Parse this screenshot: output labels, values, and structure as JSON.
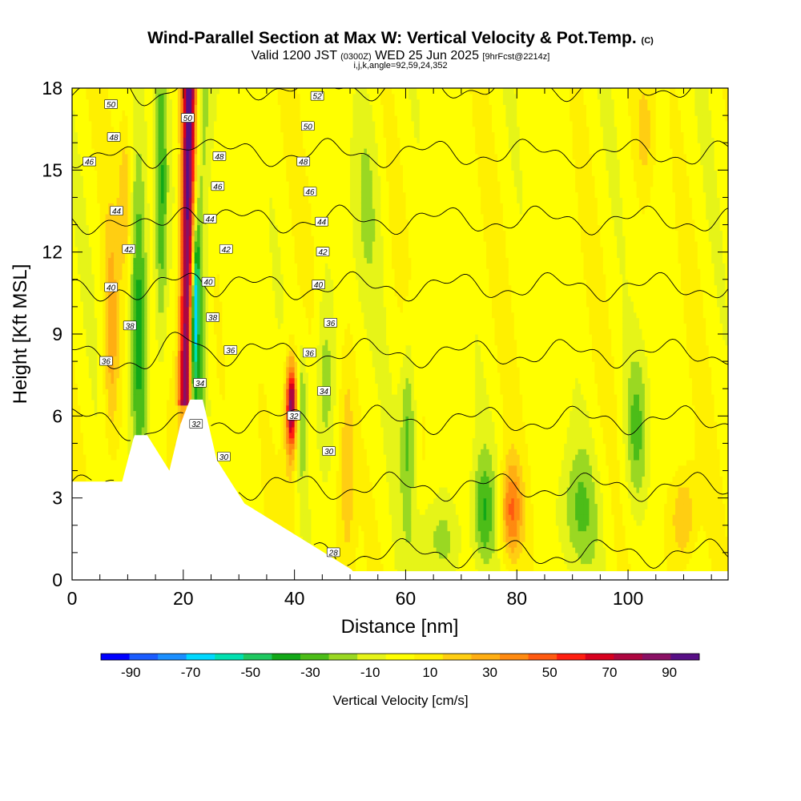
{
  "header": {
    "title_main": "Wind-Parallel Section at Max W: Vertical Velocity & Pot.Temp.",
    "title_mark": "(C)",
    "valid_prefix": "Valid 1200 JST",
    "valid_utc": "(0300Z)",
    "valid_date": "WED 25 Jun 2025",
    "forecast": "[9hrFcst@2214z]",
    "indices": "i,j,k,angle=92,59,24,352"
  },
  "chart_data": {
    "type": "heatmap",
    "title": "Wind-Parallel Section at Max W: Vertical Velocity & Pot.Temp.",
    "xlabel": "Distance [nm]",
    "ylabel": "Height [Kft MSL]",
    "xlim": [
      0,
      118
    ],
    "ylim": [
      0,
      18
    ],
    "x_ticks": [
      0,
      20,
      40,
      60,
      80,
      100
    ],
    "y_ticks": [
      0,
      3,
      6,
      9,
      12,
      15,
      18
    ],
    "colorbar": {
      "title": "Vertical Velocity [cm/s]",
      "tick_labels": [
        "-90",
        "-70",
        "-50",
        "-30",
        "-10",
        "10",
        "30",
        "50",
        "70",
        "90"
      ],
      "ticks": [
        -90,
        -70,
        -50,
        -30,
        -10,
        10,
        30,
        50,
        70,
        90
      ],
      "range": [
        -100,
        100
      ],
      "colors": [
        "#0000ff",
        "#1a5cff",
        "#1b8fff",
        "#00d8ff",
        "#00e0b0",
        "#1ec860",
        "#12a818",
        "#4cbd18",
        "#9ad822",
        "#e6f418",
        "#ffff00",
        "#fff000",
        "#ffce12",
        "#ffae12",
        "#ff8a10",
        "#ff5a10",
        "#ff1e10",
        "#d8001e",
        "#ae0640",
        "#8a1064",
        "#580f86"
      ]
    },
    "theta_contours": {
      "levels": [
        28,
        30,
        32,
        34,
        36,
        38,
        40,
        42,
        44,
        46,
        48,
        50,
        52
      ],
      "labels": [
        {
          "text": "50",
          "x": 7,
          "y": 17.4
        },
        {
          "text": "48",
          "x": 7.5,
          "y": 16.2
        },
        {
          "text": "46",
          "x": 3.1,
          "y": 15.3
        },
        {
          "text": "44",
          "x": 8,
          "y": 13.5
        },
        {
          "text": "42",
          "x": 10.2,
          "y": 12.1
        },
        {
          "text": "40",
          "x": 7,
          "y": 10.7
        },
        {
          "text": "38",
          "x": 10.4,
          "y": 9.3
        },
        {
          "text": "36",
          "x": 6.1,
          "y": 8
        },
        {
          "text": "50",
          "x": 20.8,
          "y": 16.9
        },
        {
          "text": "48",
          "x": 26.5,
          "y": 15.5
        },
        {
          "text": "46",
          "x": 26.2,
          "y": 14.4
        },
        {
          "text": "44",
          "x": 24.8,
          "y": 13.2
        },
        {
          "text": "42",
          "x": 27.7,
          "y": 12.1
        },
        {
          "text": "40",
          "x": 24.5,
          "y": 10.9
        },
        {
          "text": "38",
          "x": 25.3,
          "y": 9.6
        },
        {
          "text": "36",
          "x": 28.5,
          "y": 8.4
        },
        {
          "text": "34",
          "x": 23,
          "y": 7.2
        },
        {
          "text": "32",
          "x": 22.3,
          "y": 5.7
        },
        {
          "text": "30",
          "x": 27.3,
          "y": 4.5
        },
        {
          "text": "52",
          "x": 44.1,
          "y": 17.7
        },
        {
          "text": "50",
          "x": 42.4,
          "y": 16.6
        },
        {
          "text": "48",
          "x": 41.6,
          "y": 15.3
        },
        {
          "text": "46",
          "x": 42.8,
          "y": 14.2
        },
        {
          "text": "44",
          "x": 44.9,
          "y": 13.1
        },
        {
          "text": "42",
          "x": 45.1,
          "y": 12
        },
        {
          "text": "40",
          "x": 44.3,
          "y": 10.8
        },
        {
          "text": "36",
          "x": 46.5,
          "y": 9.4
        },
        {
          "text": "36",
          "x": 42.7,
          "y": 8.3
        },
        {
          "text": "34",
          "x": 45.3,
          "y": 6.9
        },
        {
          "text": "32",
          "x": 39.9,
          "y": 6
        },
        {
          "text": "30",
          "x": 46.2,
          "y": 4.7
        },
        {
          "text": "28",
          "x": 47,
          "y": 1
        }
      ]
    }
  }
}
